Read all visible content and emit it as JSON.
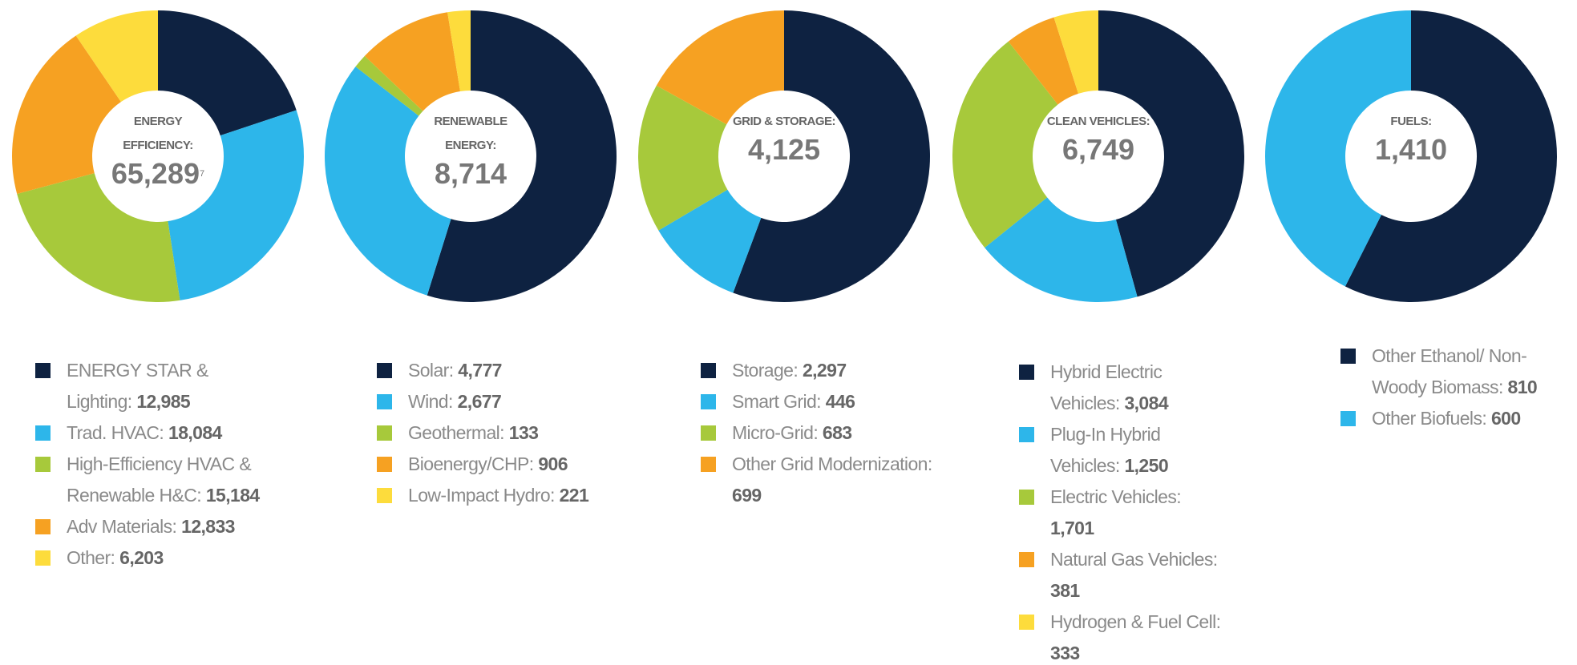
{
  "chart_data": [
    {
      "type": "donut",
      "title": "ENERGY EFFICIENCY:",
      "total": 65289,
      "total_label": "65,289",
      "footnote": "7",
      "categories": [
        "ENERGY STAR & Lighting:",
        "Trad. HVAC:",
        "High-Efficiency HVAC & Renewable H&C:",
        "Adv Materials:",
        "Other:"
      ],
      "values": [
        12985,
        18084,
        15184,
        12833,
        6203
      ],
      "value_labels": [
        "12,985",
        "18,084",
        "15,184",
        "12,833",
        "6,203"
      ],
      "colors": [
        "#0e2241",
        "#2db6ea",
        "#a7c93b",
        "#f6a122",
        "#fddc3c"
      ]
    },
    {
      "type": "donut",
      "title": "RENEWABLE ENERGY:",
      "total": 8714,
      "total_label": "8,714",
      "categories": [
        "Solar:",
        "Wind:",
        "Geothermal:",
        "Bioenergy/CHP:",
        "Low-Impact Hydro:"
      ],
      "values": [
        4777,
        2677,
        133,
        906,
        221
      ],
      "value_labels": [
        "4,777",
        "2,677",
        "133",
        "906",
        "221"
      ],
      "colors": [
        "#0e2241",
        "#2db6ea",
        "#a7c93b",
        "#f6a122",
        "#fddc3c"
      ]
    },
    {
      "type": "donut",
      "title": "GRID & STORAGE:",
      "total": 4125,
      "total_label": "4,125",
      "categories": [
        "Storage:",
        "Smart Grid:",
        "Micro-Grid:",
        "Other Grid Modernization:"
      ],
      "values": [
        2297,
        446,
        683,
        699
      ],
      "value_labels": [
        "2,297",
        "446",
        "683",
        "699"
      ],
      "colors": [
        "#0e2241",
        "#2db6ea",
        "#a7c93b",
        "#f6a122"
      ]
    },
    {
      "type": "donut",
      "title": "CLEAN VEHICLES:",
      "total": 6749,
      "total_label": "6,749",
      "categories": [
        "Hybrid Electric Vehicles:",
        "Plug-In Hybrid Vehicles:",
        "Electric Vehicles:",
        "Natural Gas Vehicles:",
        "Hydrogen & Fuel Cell:"
      ],
      "values": [
        3084,
        1250,
        1701,
        381,
        333
      ],
      "value_labels": [
        "3,084",
        "1,250",
        "1,701",
        "381",
        "333"
      ],
      "colors": [
        "#0e2241",
        "#2db6ea",
        "#a7c93b",
        "#f6a122",
        "#fddc3c"
      ]
    },
    {
      "type": "donut",
      "title": "FUELS:",
      "total": 1410,
      "total_label": "1,410",
      "categories": [
        "Other Ethanol/ Non-Woody Biomass:",
        "Other Biofuels:"
      ],
      "values": [
        810,
        600
      ],
      "value_labels": [
        "810",
        "600"
      ],
      "colors": [
        "#0e2241",
        "#2db6ea"
      ]
    }
  ]
}
